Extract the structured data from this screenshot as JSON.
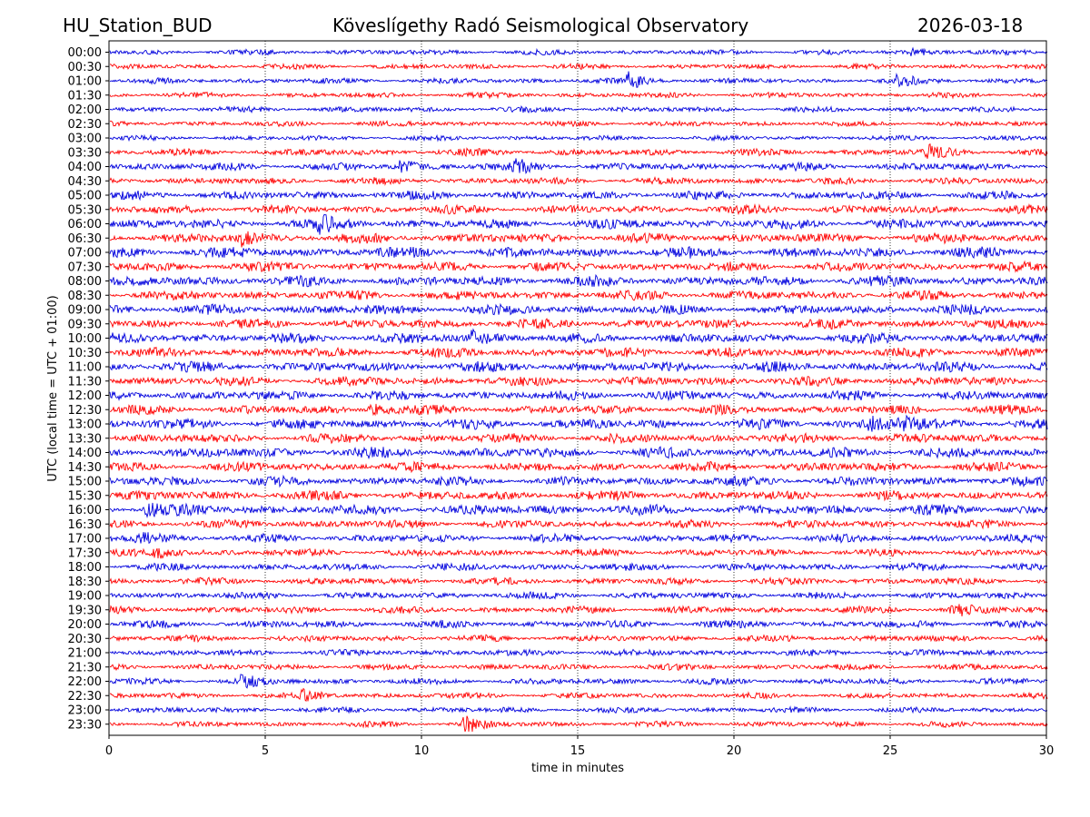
{
  "header": {
    "station": "HU_Station_BUD",
    "title": "Köveslígethy Radó Seismological Observatory",
    "date": "2026-03-18"
  },
  "chart_data": {
    "type": "line",
    "title": "Köveslígethy Radó Seismological Observatory",
    "xlabel": "time in minutes",
    "ylabel": "UTC (local time = UTC + 01:00)",
    "xlim": [
      0,
      30
    ],
    "x_ticks": [
      0,
      5,
      10,
      15,
      20,
      25,
      30
    ],
    "x_tick_labels": [
      "0",
      "5",
      "10",
      "15",
      "20",
      "25",
      "30"
    ],
    "grid": "vertical dotted at x ticks",
    "series_colors": [
      "#0000dd",
      "#ff0000"
    ],
    "row_labels": [
      "00:00",
      "00:30",
      "01:00",
      "01:30",
      "02:00",
      "02:30",
      "03:00",
      "03:30",
      "04:00",
      "04:30",
      "05:00",
      "05:30",
      "06:00",
      "06:30",
      "07:00",
      "07:30",
      "08:00",
      "08:30",
      "09:00",
      "09:30",
      "10:00",
      "10:30",
      "11:00",
      "11:30",
      "12:00",
      "12:30",
      "13:00",
      "13:30",
      "14:00",
      "14:30",
      "15:00",
      "15:30",
      "16:00",
      "16:30",
      "17:00",
      "17:30",
      "18:00",
      "18:30",
      "19:00",
      "19:30",
      "20:00",
      "20:30",
      "21:00",
      "21:30",
      "22:00",
      "22:30",
      "23:00",
      "23:30"
    ],
    "noise_level": [
      0.35,
      0.35,
      0.4,
      0.35,
      0.4,
      0.35,
      0.3,
      0.55,
      0.65,
      0.55,
      0.75,
      0.75,
      0.9,
      0.9,
      1.0,
      0.85,
      0.95,
      0.85,
      0.9,
      0.85,
      0.95,
      0.85,
      0.95,
      0.85,
      0.85,
      0.8,
      0.95,
      0.85,
      0.95,
      0.85,
      0.85,
      0.85,
      0.95,
      0.7,
      0.7,
      0.6,
      0.6,
      0.55,
      0.55,
      0.55,
      0.6,
      0.5,
      0.5,
      0.45,
      0.45,
      0.4,
      0.4,
      0.4
    ],
    "events": [
      {
        "row": "00:00",
        "minute": 25.7,
        "amplitude": 1.0
      },
      {
        "row": "01:00",
        "minute": 16.6,
        "amplitude": 1.4
      },
      {
        "row": "01:00",
        "minute": 25.2,
        "amplitude": 0.9
      },
      {
        "row": "03:30",
        "minute": 26.2,
        "amplitude": 1.3
      },
      {
        "row": "04:00",
        "minute": 9.3,
        "amplitude": 1.2
      },
      {
        "row": "04:00",
        "minute": 13.0,
        "amplitude": 1.1
      },
      {
        "row": "06:00",
        "minute": 6.7,
        "amplitude": 1.2
      },
      {
        "row": "06:30",
        "minute": 4.2,
        "amplitude": 1.2
      },
      {
        "row": "10:00",
        "minute": 11.6,
        "amplitude": 1.2
      },
      {
        "row": "12:30",
        "minute": 8.4,
        "amplitude": 1.5
      },
      {
        "row": "13:00",
        "minute": 24.3,
        "amplitude": 1.7
      },
      {
        "row": "13:00",
        "minute": 25.3,
        "amplitude": 1.3
      },
      {
        "row": "16:00",
        "minute": 1.2,
        "amplitude": 1.5
      },
      {
        "row": "17:00",
        "minute": 0.9,
        "amplitude": 1.3
      },
      {
        "row": "17:30",
        "minute": 1.5,
        "amplitude": 1.1
      },
      {
        "row": "19:30",
        "minute": 27.0,
        "amplitude": 1.3
      },
      {
        "row": "22:00",
        "minute": 4.2,
        "amplitude": 1.2
      },
      {
        "row": "22:30",
        "minute": 6.2,
        "amplitude": 1.1
      },
      {
        "row": "23:30",
        "minute": 11.3,
        "amplitude": 2.0
      }
    ]
  }
}
